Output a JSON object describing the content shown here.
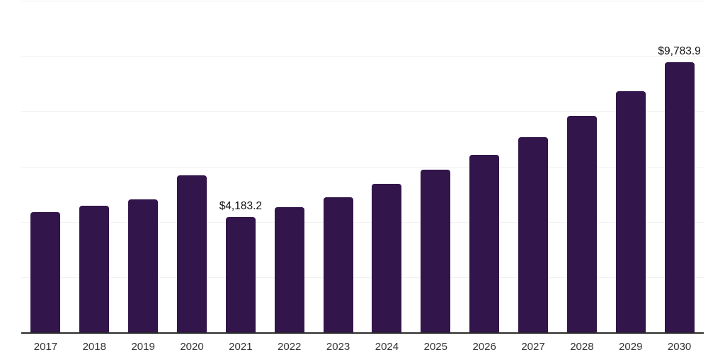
{
  "chart": {
    "bar_color": "#32154a",
    "gridline_color": "#f2f2f2",
    "axis_line_color": "#2b2b2b",
    "tick_label_color": "#333333",
    "data_label_color": "#111111"
  },
  "chart_data": {
    "type": "bar",
    "title": "",
    "xlabel": "",
    "ylabel": "",
    "categories": [
      "2017",
      "2018",
      "2019",
      "2020",
      "2021",
      "2022",
      "2023",
      "2024",
      "2025",
      "2026",
      "2027",
      "2028",
      "2029",
      "2030"
    ],
    "values": [
      4340,
      4570,
      4810,
      5680,
      4183.2,
      4540,
      4890,
      5370,
      5890,
      6430,
      7070,
      7830,
      8730,
      9783.9
    ],
    "data_labels": {
      "2021": "$4,183.2",
      "2030": "$9,783.9"
    },
    "ylim": [
      0,
      12000
    ],
    "gridline_step": 2000,
    "grid": true,
    "legend": false,
    "y_axis_tick_labels_visible": false
  }
}
